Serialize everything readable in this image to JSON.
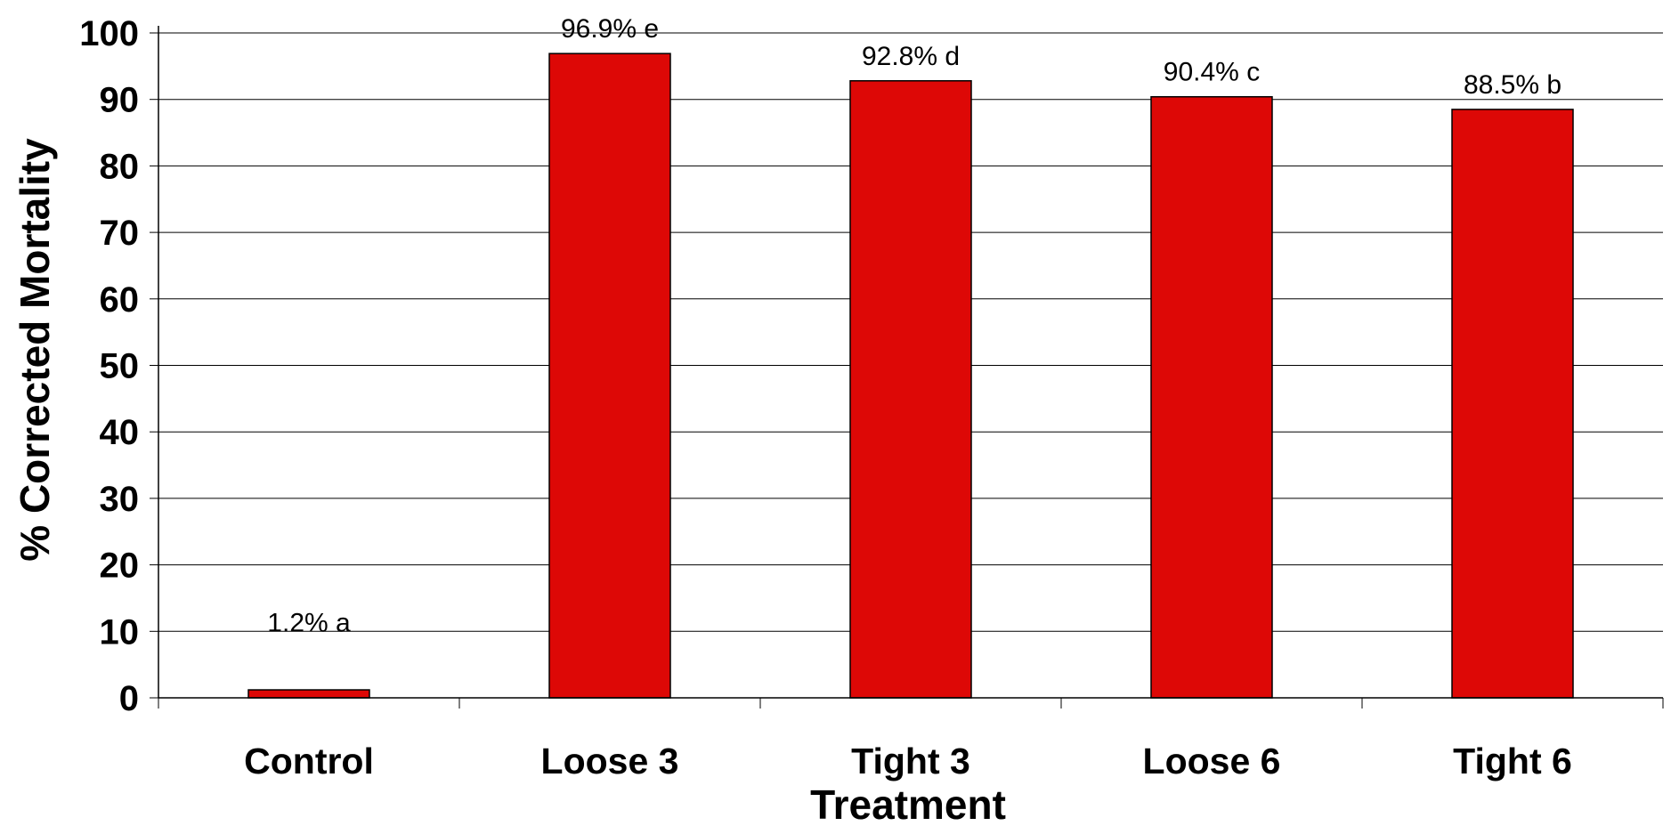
{
  "chart_data": {
    "type": "bar",
    "categories": [
      "Control",
      "Loose 3",
      "Tight 3",
      "Loose 6",
      "Tight 6"
    ],
    "values": [
      1.2,
      96.9,
      92.8,
      90.4,
      88.5
    ],
    "data_labels": [
      "1.2% a",
      "96.9% e",
      "92.8% d",
      "90.4% c",
      "88.5% b"
    ],
    "title": "",
    "xlabel": "Treatment",
    "ylabel": "% Corrected Mortality",
    "ylim": [
      0,
      100
    ],
    "yticks": [
      "0",
      "10",
      "20",
      "30",
      "40",
      "50",
      "60",
      "70",
      "80",
      "90",
      "100"
    ],
    "grid": true,
    "legend": "none",
    "colors": {
      "bar_fill": "#DD0806",
      "bar_stroke": "#000000",
      "grid": "#000000",
      "axis": "#000000",
      "background": "#FFFFFF"
    }
  }
}
